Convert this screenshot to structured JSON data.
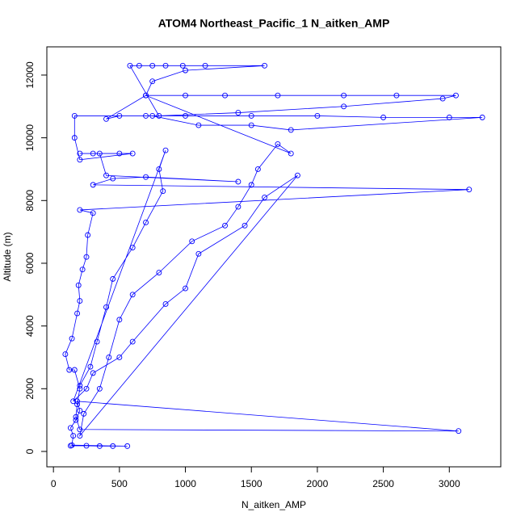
{
  "chart_data": {
    "type": "line",
    "title": "ATOM4 Northeast_Pacific_1 N_aitken_AMP",
    "x_label": "N_aitken_AMP",
    "y_label": "Altitude (m)",
    "xlim": [
      -50,
      3390
    ],
    "ylim": [
      -490,
      12900
    ],
    "xticks": [
      0,
      500,
      1000,
      1500,
      2000,
      2500,
      3000
    ],
    "yticks": [
      0,
      2000,
      4000,
      6000,
      8000,
      10000,
      12000
    ],
    "series": [
      {
        "name": "N_aitken_AMP",
        "color": "#0000ff",
        "x": [
          130,
          250,
          350,
          450,
          560,
          140,
          150,
          130,
          170,
          200,
          180,
          3070,
          200,
          170,
          180,
          200,
          160,
          120,
          90,
          140,
          180,
          200,
          190,
          220,
          250,
          260,
          300,
          200,
          3150,
          300,
          450,
          700,
          1400,
          400,
          350,
          200,
          300,
          500,
          600,
          200,
          160,
          160,
          700,
          1000,
          1500,
          2000,
          2500,
          3000,
          3250,
          1800,
          1500,
          1100,
          750,
          500,
          400,
          700,
          1000,
          1300,
          1700,
          2200,
          2600,
          3050,
          2950,
          2200,
          1400,
          800,
          580,
          650,
          750,
          850,
          980,
          1150,
          1600,
          1000,
          750,
          700,
          1800,
          1700,
          1550,
          1500,
          1400,
          1300,
          1050,
          800,
          600,
          500,
          420,
          350,
          230,
          200,
          1850,
          1600,
          1450,
          1100,
          1000,
          850,
          600,
          500,
          300,
          250,
          150,
          850,
          800,
          830,
          700,
          600,
          450,
          400,
          330,
          280,
          200
        ],
        "values": [
          180,
          180,
          170,
          170,
          170,
          200,
          500,
          750,
          1000,
          1300,
          1600,
          650,
          700,
          1100,
          1500,
          2000,
          2600,
          2600,
          3100,
          3600,
          4400,
          4800,
          5300,
          5800,
          6200,
          6900,
          7600,
          7700,
          8350,
          8500,
          8700,
          8750,
          8600,
          8800,
          9500,
          9500,
          9500,
          9500,
          9500,
          9300,
          10000,
          10700,
          10700,
          10700,
          10700,
          10700,
          10650,
          10650,
          10650,
          10250,
          10400,
          10400,
          10700,
          10700,
          10600,
          11350,
          11350,
          11350,
          11350,
          11350,
          11350,
          11350,
          11250,
          11000,
          10800,
          10700,
          12300,
          12300,
          12300,
          12300,
          12300,
          12300,
          12300,
          12150,
          11800,
          11350,
          9500,
          9800,
          9000,
          8500,
          7800,
          7200,
          6700,
          5700,
          5000,
          4200,
          3000,
          2000,
          1200,
          500,
          8800,
          8100,
          7200,
          6300,
          5200,
          4700,
          3500,
          3000,
          2500,
          2000,
          1600,
          9600,
          9000,
          8300,
          7300,
          6500,
          5500,
          4600,
          3500,
          2700,
          2100
        ]
      }
    ]
  }
}
